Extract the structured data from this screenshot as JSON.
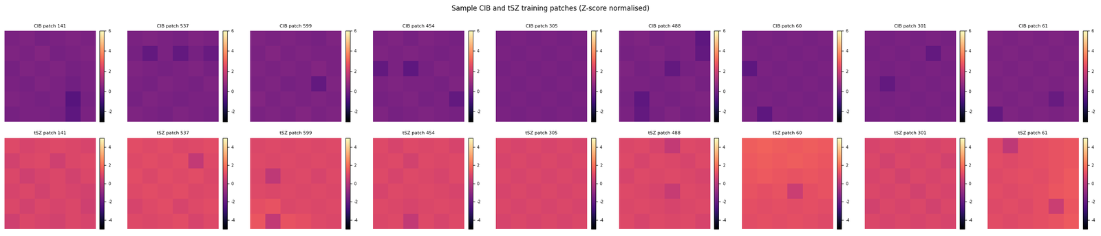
{
  "title": "Sample CIB and tSZ training patches (Z-score normalised)",
  "chart_data": [
    {
      "type": "heatmap",
      "title": "CIB patch 141",
      "tick_labels": false,
      "zlim": [
        -3,
        6
      ],
      "zticks": [
        -2,
        0,
        2,
        4,
        6
      ],
      "cells": [
        [
          0.2,
          0.3,
          0.1,
          0.2,
          0.3,
          0.2
        ],
        [
          0.3,
          0.2,
          0.4,
          0.1,
          0.2,
          0.3
        ],
        [
          0.1,
          0.3,
          0.2,
          0.3,
          0.1,
          0.2
        ],
        [
          0.2,
          0.1,
          0.3,
          0.2,
          0.0,
          0.2
        ],
        [
          0.3,
          0.2,
          0.1,
          0.2,
          -0.6,
          0.1
        ],
        [
          0.1,
          0.2,
          0.2,
          0.1,
          -0.4,
          0.2
        ]
      ]
    },
    {
      "type": "heatmap",
      "title": "CIB patch 537",
      "tick_labels": false,
      "zlim": [
        -3,
        6
      ],
      "zticks": [
        -2,
        0,
        2,
        4,
        6
      ],
      "cells": [
        [
          0.2,
          0.3,
          0.2,
          0.1,
          0.3,
          0.2
        ],
        [
          0.1,
          -0.3,
          0.2,
          -0.3,
          0.1,
          -0.2
        ],
        [
          0.3,
          0.2,
          0.1,
          0.2,
          0.3,
          0.1
        ],
        [
          0.2,
          0.1,
          0.3,
          0.2,
          0.1,
          0.3
        ],
        [
          0.1,
          0.3,
          0.2,
          0.1,
          0.2,
          0.2
        ],
        [
          0.3,
          0.2,
          0.1,
          0.3,
          0.2,
          0.1
        ]
      ]
    },
    {
      "type": "heatmap",
      "title": "CIB patch 599",
      "tick_labels": false,
      "zlim": [
        -3,
        6
      ],
      "zticks": [
        -2,
        0,
        2,
        4,
        6
      ],
      "cells": [
        [
          0.3,
          0.2,
          0.3,
          0.2,
          0.1,
          0.3
        ],
        [
          0.2,
          0.4,
          0.2,
          0.3,
          0.2,
          0.2
        ],
        [
          0.3,
          0.2,
          0.3,
          0.2,
          0.4,
          0.2
        ],
        [
          0.2,
          0.3,
          0.1,
          0.2,
          -0.3,
          0.3
        ],
        [
          0.4,
          0.2,
          0.3,
          0.2,
          0.3,
          0.2
        ],
        [
          0.2,
          0.3,
          0.2,
          0.4,
          0.2,
          0.3
        ]
      ]
    },
    {
      "type": "heatmap",
      "title": "CIB patch 454",
      "tick_labels": false,
      "zlim": [
        -3,
        6
      ],
      "zticks": [
        -2,
        0,
        2,
        4,
        6
      ],
      "cells": [
        [
          0.2,
          0.3,
          0.1,
          0.3,
          0.2,
          0.1
        ],
        [
          0.3,
          0.2,
          0.3,
          0.2,
          0.1,
          0.2
        ],
        [
          -0.3,
          0.2,
          -0.4,
          0.1,
          0.3,
          0.2
        ],
        [
          0.2,
          0.3,
          0.2,
          0.2,
          0.1,
          0.3
        ],
        [
          0.1,
          0.2,
          0.3,
          0.1,
          0.2,
          -0.3
        ],
        [
          0.3,
          0.1,
          0.2,
          0.3,
          0.2,
          0.1
        ]
      ]
    },
    {
      "type": "heatmap",
      "title": "CIB patch 305",
      "tick_labels": false,
      "zlim": [
        -3,
        6
      ],
      "zticks": [
        -2,
        0,
        2,
        4,
        6
      ],
      "cells": [
        [
          0.1,
          0.2,
          0.1,
          0.2,
          0.1,
          0.2
        ],
        [
          0.2,
          0.1,
          0.2,
          0.1,
          0.2,
          0.1
        ],
        [
          0.1,
          0.2,
          0.1,
          0.2,
          0.1,
          0.2
        ],
        [
          0.2,
          0.1,
          0.2,
          0.1,
          0.2,
          0.1
        ],
        [
          0.1,
          0.2,
          0.1,
          0.2,
          0.1,
          0.2
        ],
        [
          0.2,
          0.1,
          0.2,
          0.1,
          0.2,
          0.1
        ]
      ]
    },
    {
      "type": "heatmap",
      "title": "CIB patch 488",
      "tick_labels": false,
      "zlim": [
        -3,
        6
      ],
      "zticks": [
        -2,
        0,
        2,
        4,
        6
      ],
      "cells": [
        [
          0.2,
          0.3,
          0.1,
          0.2,
          0.2,
          -0.4
        ],
        [
          0.1,
          0.2,
          0.3,
          0.1,
          0.2,
          -0.3
        ],
        [
          0.3,
          0.1,
          0.2,
          -0.3,
          0.1,
          0.2
        ],
        [
          0.2,
          0.2,
          0.1,
          0.2,
          0.3,
          0.1
        ],
        [
          0.1,
          -0.4,
          0.2,
          0.1,
          0.2,
          0.3
        ],
        [
          0.2,
          -0.3,
          0.1,
          0.3,
          0.1,
          0.2
        ]
      ]
    },
    {
      "type": "heatmap",
      "title": "CIB patch 60",
      "tick_labels": false,
      "zlim": [
        -3,
        6
      ],
      "zticks": [
        -2,
        0,
        2,
        4,
        6
      ],
      "cells": [
        [
          0.1,
          0.2,
          0.1,
          0.2,
          0.1,
          0.2
        ],
        [
          0.2,
          0.1,
          0.2,
          0.1,
          0.2,
          0.1
        ],
        [
          -0.4,
          0.2,
          0.1,
          0.2,
          0.1,
          0.2
        ],
        [
          0.2,
          0.1,
          0.2,
          0.1,
          0.2,
          0.1
        ],
        [
          0.1,
          0.2,
          0.1,
          0.2,
          0.1,
          0.2
        ],
        [
          0.2,
          -0.4,
          0.2,
          0.1,
          0.2,
          0.1
        ]
      ]
    },
    {
      "type": "heatmap",
      "title": "CIB patch 301",
      "tick_labels": false,
      "zlim": [
        -3,
        6
      ],
      "zticks": [
        -2,
        0,
        2,
        4,
        6
      ],
      "cells": [
        [
          0.2,
          0.1,
          0.2,
          0.1,
          0.2,
          0.1
        ],
        [
          0.1,
          0.2,
          0.1,
          0.2,
          -0.3,
          0.2
        ],
        [
          0.2,
          0.1,
          0.2,
          0.1,
          0.2,
          0.1
        ],
        [
          0.1,
          -0.3,
          0.1,
          0.2,
          0.1,
          0.2
        ],
        [
          0.2,
          0.1,
          0.2,
          0.1,
          0.2,
          0.1
        ],
        [
          0.1,
          0.2,
          0.1,
          0.2,
          0.1,
          0.2
        ]
      ]
    },
    {
      "type": "heatmap",
      "title": "CIB patch 61",
      "tick_labels": false,
      "zlim": [
        -3,
        6
      ],
      "zticks": [
        -2,
        0,
        2,
        4,
        6
      ],
      "cells": [
        [
          0.3,
          0.2,
          0.3,
          0.2,
          0.3,
          0.2
        ],
        [
          0.2,
          0.3,
          0.2,
          0.3,
          0.2,
          0.3
        ],
        [
          0.3,
          0.2,
          0.3,
          0.2,
          0.3,
          0.2
        ],
        [
          0.2,
          0.3,
          0.2,
          0.3,
          0.2,
          0.3
        ],
        [
          0.3,
          0.2,
          0.3,
          0.2,
          -0.2,
          0.2
        ],
        [
          -0.3,
          0.3,
          0.2,
          0.3,
          0.2,
          0.3
        ]
      ]
    },
    {
      "type": "heatmap",
      "title": "tSZ patch 141",
      "tick_labels": false,
      "zlim": [
        -5,
        5
      ],
      "zticks": [
        -4,
        -2,
        0,
        2,
        4
      ],
      "cells": [
        [
          1.0,
          0.8,
          0.9,
          1.0,
          0.9,
          0.8
        ],
        [
          0.7,
          0.9,
          1.0,
          0.6,
          0.9,
          1.0
        ],
        [
          0.9,
          0.6,
          0.8,
          0.9,
          0.7,
          0.9
        ],
        [
          0.8,
          0.9,
          0.7,
          0.9,
          0.8,
          0.7
        ],
        [
          0.9,
          0.7,
          0.9,
          0.8,
          0.9,
          0.6
        ],
        [
          0.6,
          0.9,
          0.8,
          0.7,
          0.9,
          0.8
        ]
      ]
    },
    {
      "type": "heatmap",
      "title": "tSZ patch 537",
      "tick_labels": false,
      "zlim": [
        -5,
        5
      ],
      "zticks": [
        -4,
        -2,
        0,
        2,
        4
      ],
      "cells": [
        [
          1.1,
          1.0,
          1.1,
          0.9,
          1.0,
          1.1
        ],
        [
          1.0,
          1.1,
          1.0,
          1.1,
          0.3,
          1.0
        ],
        [
          1.1,
          0.9,
          1.1,
          1.0,
          1.1,
          0.9
        ],
        [
          1.0,
          1.1,
          1.0,
          1.1,
          0.9,
          1.0
        ],
        [
          0.8,
          1.0,
          1.1,
          0.8,
          1.0,
          1.1
        ],
        [
          1.0,
          0.9,
          1.0,
          1.1,
          0.8,
          1.0
        ]
      ]
    },
    {
      "type": "heatmap",
      "title": "tSZ patch 599",
      "tick_labels": false,
      "zlim": [
        -5,
        5
      ],
      "zticks": [
        -4,
        -2,
        0,
        2,
        4
      ],
      "cells": [
        [
          0.9,
          1.0,
          0.9,
          1.0,
          0.9,
          1.0
        ],
        [
          1.0,
          0.9,
          1.0,
          0.9,
          1.0,
          0.9
        ],
        [
          0.9,
          0.2,
          0.9,
          1.0,
          0.8,
          1.0
        ],
        [
          1.0,
          0.9,
          1.0,
          0.9,
          1.0,
          0.9
        ],
        [
          1.2,
          1.3,
          0.9,
          1.0,
          0.9,
          1.0
        ],
        [
          1.4,
          0.3,
          1.3,
          1.2,
          1.0,
          0.9
        ]
      ]
    },
    {
      "type": "heatmap",
      "title": "tSZ patch 454",
      "tick_labels": false,
      "zlim": [
        -5,
        5
      ],
      "zticks": [
        -4,
        -2,
        0,
        2,
        4
      ],
      "cells": [
        [
          1.0,
          0.8,
          1.0,
          0.9,
          1.0,
          0.8
        ],
        [
          0.9,
          1.0,
          0.7,
          1.0,
          0.9,
          1.0
        ],
        [
          1.0,
          0.8,
          1.0,
          0.9,
          0.8,
          1.0
        ],
        [
          0.8,
          1.0,
          0.9,
          1.0,
          0.9,
          0.8
        ],
        [
          1.0,
          0.9,
          0.8,
          0.9,
          1.0,
          0.9
        ],
        [
          0.9,
          1.0,
          0.3,
          1.0,
          0.8,
          1.0
        ]
      ]
    },
    {
      "type": "heatmap",
      "title": "tSZ patch 305",
      "tick_labels": false,
      "zlim": [
        -5,
        5
      ],
      "zticks": [
        -4,
        -2,
        0,
        2,
        4
      ],
      "cells": [
        [
          0.9,
          0.8,
          0.9,
          0.8,
          0.9,
          0.8
        ],
        [
          0.8,
          0.9,
          0.8,
          0.9,
          0.8,
          0.9
        ],
        [
          0.9,
          0.8,
          0.9,
          0.8,
          0.9,
          0.8
        ],
        [
          0.8,
          0.9,
          0.8,
          0.9,
          0.8,
          0.9
        ],
        [
          0.9,
          0.8,
          0.9,
          0.8,
          0.9,
          0.8
        ],
        [
          0.8,
          0.9,
          0.8,
          0.9,
          0.8,
          0.9
        ]
      ]
    },
    {
      "type": "heatmap",
      "title": "tSZ patch 488",
      "tick_labels": false,
      "zlim": [
        -5,
        5
      ],
      "zticks": [
        -4,
        -2,
        0,
        2,
        4
      ],
      "cells": [
        [
          0.9,
          1.0,
          0.8,
          0.3,
          1.0,
          0.9
        ],
        [
          1.0,
          0.8,
          1.0,
          0.9,
          0.8,
          1.0
        ],
        [
          0.8,
          1.0,
          0.9,
          1.0,
          0.9,
          0.8
        ],
        [
          1.0,
          0.9,
          0.8,
          0.4,
          1.0,
          0.9
        ],
        [
          0.9,
          1.0,
          0.9,
          0.8,
          0.9,
          1.0
        ],
        [
          1.0,
          0.8,
          1.0,
          0.9,
          1.0,
          0.8
        ]
      ]
    },
    {
      "type": "heatmap",
      "title": "tSZ patch 60",
      "tick_labels": false,
      "zlim": [
        -5,
        5
      ],
      "zticks": [
        -4,
        -2,
        0,
        2,
        4
      ],
      "cells": [
        [
          1.6,
          1.7,
          1.6,
          1.5,
          1.6,
          1.5
        ],
        [
          1.5,
          1.6,
          1.5,
          1.6,
          1.5,
          1.4
        ],
        [
          1.4,
          1.5,
          1.4,
          1.3,
          1.4,
          1.3
        ],
        [
          1.3,
          1.2,
          1.3,
          0.5,
          1.2,
          1.3
        ],
        [
          1.2,
          1.1,
          1.2,
          1.1,
          1.2,
          1.1
        ],
        [
          1.1,
          1.2,
          1.1,
          1.2,
          1.1,
          1.0
        ]
      ]
    },
    {
      "type": "heatmap",
      "title": "tSZ patch 301",
      "tick_labels": false,
      "zlim": [
        -5,
        5
      ],
      "zticks": [
        -4,
        -2,
        0,
        2,
        4
      ],
      "cells": [
        [
          0.8,
          0.9,
          0.8,
          0.9,
          0.8,
          0.9
        ],
        [
          0.9,
          0.7,
          0.9,
          0.8,
          0.9,
          0.7
        ],
        [
          0.8,
          0.9,
          0.7,
          0.9,
          0.8,
          0.9
        ],
        [
          0.9,
          0.8,
          0.9,
          0.7,
          0.9,
          0.8
        ],
        [
          0.7,
          0.9,
          0.8,
          0.9,
          0.7,
          0.9
        ],
        [
          0.9,
          0.8,
          0.9,
          0.8,
          0.9,
          0.8
        ]
      ]
    },
    {
      "type": "heatmap",
      "title": "tSZ patch 61",
      "tick_labels": false,
      "zlim": [
        -5,
        5
      ],
      "zticks": [
        -4,
        -2,
        0,
        2,
        4
      ],
      "cells": [
        [
          1.0,
          0.2,
          1.1,
          1.2,
          1.3,
          1.4
        ],
        [
          1.1,
          1.0,
          1.1,
          1.2,
          1.3,
          1.4
        ],
        [
          1.0,
          1.1,
          1.2,
          1.1,
          1.3,
          1.5
        ],
        [
          1.1,
          1.0,
          1.1,
          1.2,
          1.4,
          1.5
        ],
        [
          1.0,
          1.1,
          1.0,
          1.2,
          0.5,
          1.4
        ],
        [
          1.1,
          1.0,
          1.1,
          1.2,
          1.3,
          1.5
        ]
      ]
    }
  ]
}
